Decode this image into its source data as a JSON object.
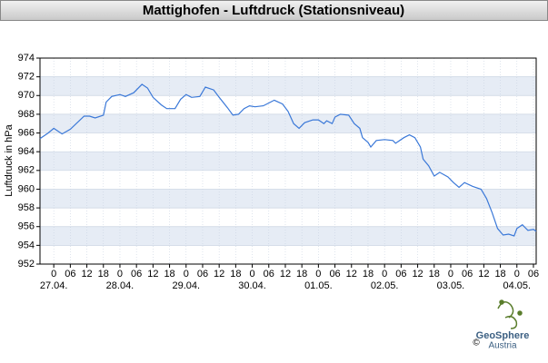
{
  "chart_data": {
    "type": "line",
    "title": "Mattighofen - Luftdruck (Stationsniveau)",
    "ylabel": "Luftdruck in hPa",
    "x": [
      -5,
      -2,
      0,
      3,
      6,
      11,
      13,
      15,
      18,
      19,
      21,
      24,
      26,
      29,
      32,
      34,
      36,
      39,
      41,
      44,
      46,
      48,
      50,
      53,
      55,
      58,
      60,
      63,
      65,
      67,
      69,
      71,
      73,
      76,
      78,
      80,
      83,
      85,
      87,
      89,
      91,
      94,
      96,
      98,
      99,
      101,
      102,
      104,
      107,
      109,
      111,
      112,
      114,
      115,
      117,
      120,
      123,
      124,
      127,
      129,
      131,
      133,
      134,
      136,
      138,
      140,
      143,
      145,
      147,
      149,
      152,
      155,
      157,
      159,
      161,
      163,
      165,
      167,
      168,
      170,
      172,
      174,
      175
    ],
    "series": [
      {
        "name": "Luftdruck",
        "color": "#3a78d8",
        "values": [
          965.4,
          966.0,
          966.5,
          965.9,
          966.4,
          967.8,
          967.8,
          967.6,
          967.9,
          969.3,
          969.9,
          970.1,
          969.9,
          970.3,
          971.2,
          970.8,
          969.8,
          969.0,
          968.6,
          968.6,
          969.6,
          970.1,
          969.8,
          969.9,
          970.9,
          970.6,
          969.8,
          968.7,
          967.9,
          968.0,
          968.6,
          968.9,
          968.8,
          968.9,
          969.2,
          969.5,
          969.1,
          968.3,
          967.0,
          966.5,
          967.1,
          967.4,
          967.4,
          967.0,
          967.3,
          967.0,
          967.7,
          968.0,
          967.9,
          967.0,
          966.5,
          965.5,
          965.0,
          964.5,
          965.2,
          965.3,
          965.2,
          964.9,
          965.5,
          965.8,
          965.5,
          964.5,
          963.2,
          962.5,
          961.4,
          961.8,
          961.3,
          960.7,
          960.2,
          960.7,
          960.3,
          960.0,
          959.0,
          957.5,
          955.8,
          955.1,
          955.2,
          955.0,
          955.8,
          956.2,
          955.6,
          955.7,
          955.5
        ]
      }
    ],
    "xlim": [
      -5,
      175
    ],
    "ylim": [
      952,
      974
    ],
    "yticks": [
      952,
      954,
      956,
      958,
      960,
      962,
      964,
      966,
      968,
      970,
      972,
      974
    ],
    "xticks": [
      0,
      {
        "value": 6,
        "label": "06"
      },
      12,
      18,
      {
        "value": 24,
        "label": "0"
      },
      {
        "value": 30,
        "label": "06"
      },
      {
        "value": 36,
        "label": "12"
      },
      {
        "value": 42,
        "label": "18"
      },
      {
        "value": 48,
        "label": "0"
      },
      {
        "value": 54,
        "label": "06"
      },
      {
        "value": 60,
        "label": "12"
      },
      {
        "value": 66,
        "label": "18"
      },
      {
        "value": 72,
        "label": "0"
      },
      {
        "value": 78,
        "label": "06"
      },
      {
        "value": 84,
        "label": "12"
      },
      {
        "value": 90,
        "label": "18"
      },
      {
        "value": 96,
        "label": "0"
      },
      {
        "value": 102,
        "label": "06"
      },
      {
        "value": 108,
        "label": "12"
      },
      {
        "value": 114,
        "label": "18"
      },
      {
        "value": 120,
        "label": "0"
      },
      {
        "value": 126,
        "label": "06"
      },
      {
        "value": 132,
        "label": "12"
      },
      {
        "value": 138,
        "label": "18"
      },
      {
        "value": 144,
        "label": "0"
      },
      {
        "value": 150,
        "label": "06"
      },
      {
        "value": 156,
        "label": "12"
      },
      {
        "value": 162,
        "label": "18"
      },
      {
        "value": 168,
        "label": "0"
      },
      {
        "value": 174,
        "label": "06"
      }
    ],
    "date_ticks": [
      {
        "value": 0,
        "label": "27.04."
      },
      {
        "value": 24,
        "label": "28.04."
      },
      {
        "value": 48,
        "label": "29.04."
      },
      {
        "value": 72,
        "label": "30.04."
      },
      {
        "value": 96,
        "label": "01.05."
      },
      {
        "value": 120,
        "label": "02.05."
      },
      {
        "value": 144,
        "label": "03.05."
      },
      {
        "value": 168,
        "label": "04.05."
      }
    ],
    "grid": true,
    "band_color": "#e6ecf5",
    "logo": {
      "name": "GeoSphere",
      "country": "Austria",
      "copyright": "©"
    }
  }
}
